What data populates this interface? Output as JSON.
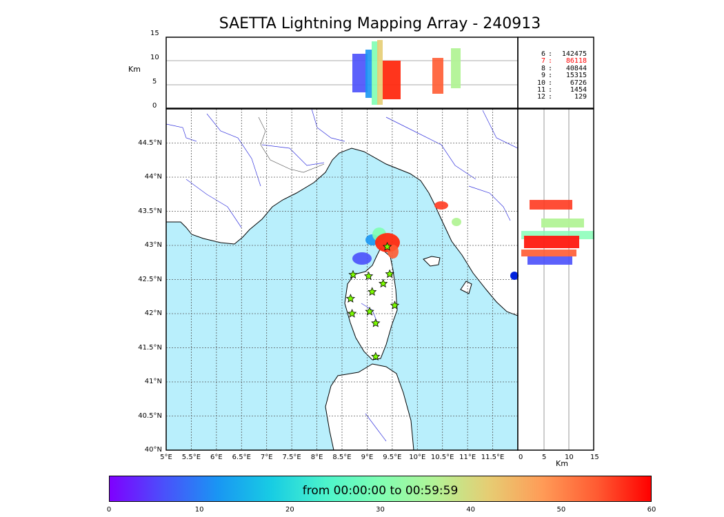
{
  "title": "SAETTA Lightning Mapping Array - 240913",
  "altitude_axis": {
    "label": "Km",
    "ticks": [
      "15",
      "10",
      "5",
      "0"
    ]
  },
  "side_axis": {
    "label": "Km",
    "ticks": [
      "0",
      "5",
      "10",
      "15"
    ]
  },
  "lat_ticks": [
    "44.5°N",
    "44°N",
    "43.5°N",
    "43°N",
    "42.5°N",
    "42°N",
    "41.5°N",
    "41°N",
    "40.5°N",
    "40°N"
  ],
  "lon_ticks": [
    "5°E",
    "5.5°E",
    "6°E",
    "6.5°E",
    "7°E",
    "7.5°E",
    "8°E",
    "8.5°E",
    "9°E",
    "9.5°E",
    "10°E",
    "10.5°E",
    "11°E",
    "11.5°E"
  ],
  "counts": [
    {
      "level": "6",
      "value": "142475",
      "color": "#000000"
    },
    {
      "level": "7",
      "value": "86118",
      "color": "#ff0000"
    },
    {
      "level": "8",
      "value": "40844",
      "color": "#000000"
    },
    {
      "level": "9",
      "value": "15315",
      "color": "#000000"
    },
    {
      "level": "10",
      "value": "6726",
      "color": "#000000"
    },
    {
      "level": "11",
      "value": "1454",
      "color": "#000000"
    },
    {
      "level": "12",
      "value": "129",
      "color": "#000000"
    }
  ],
  "colorbar": {
    "label": "from 00:00:00 to 00:59:59",
    "ticks": [
      "0",
      "10",
      "20",
      "30",
      "40",
      "50",
      "60"
    ]
  },
  "colors": {
    "sea": "#b9effc",
    "land": "#ffffff",
    "river": "#3333dd",
    "station": "#7cfc00"
  },
  "stations": [
    {
      "lon": 8.72,
      "lat": 42.57
    },
    {
      "lon": 9.03,
      "lat": 42.55
    },
    {
      "lon": 9.45,
      "lat": 42.58
    },
    {
      "lon": 9.32,
      "lat": 42.44
    },
    {
      "lon": 9.1,
      "lat": 42.32
    },
    {
      "lon": 8.67,
      "lat": 42.22
    },
    {
      "lon": 9.55,
      "lat": 42.12
    },
    {
      "lon": 8.7,
      "lat": 42.0
    },
    {
      "lon": 9.05,
      "lat": 42.03
    },
    {
      "lon": 9.17,
      "lat": 41.86
    },
    {
      "lon": 9.17,
      "lat": 41.37
    },
    {
      "lon": 9.4,
      "lat": 42.98
    }
  ]
}
